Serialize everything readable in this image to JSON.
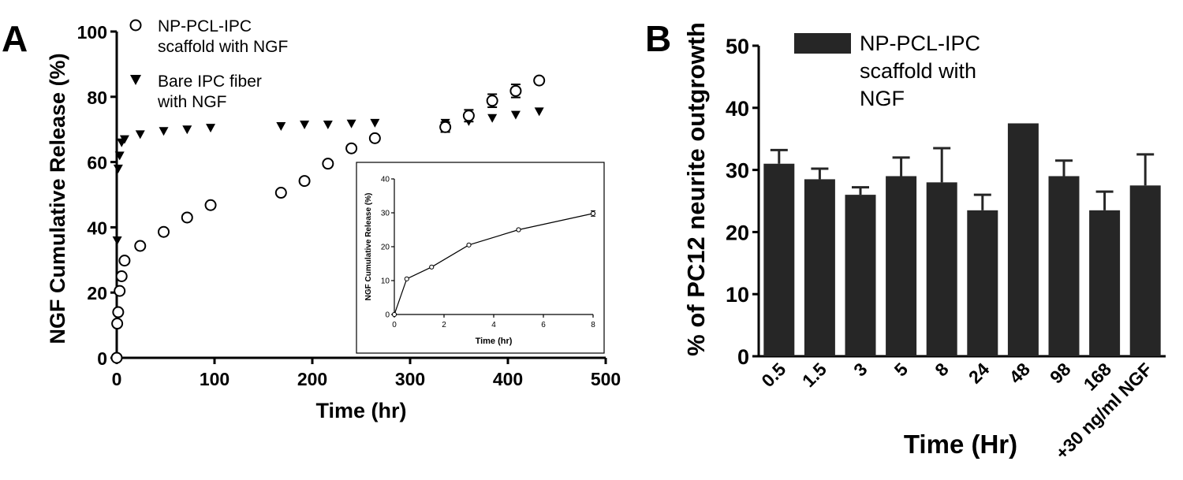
{
  "chart_data": [
    {
      "panel_label": "A",
      "type": "scatter",
      "title": "",
      "xlabel": "Time (hr)",
      "ylabel": "NGF Cumulative Release (%)",
      "xlim": [
        0,
        500
      ],
      "ylim": [
        0,
        100
      ],
      "xticks": [
        0,
        100,
        200,
        300,
        400,
        500
      ],
      "yticks": [
        0,
        20,
        40,
        60,
        80,
        100
      ],
      "grid": false,
      "legend_position": "top-left",
      "series": [
        {
          "name": "NP-PCL-IPC scaffold with NGF",
          "legend_lines": [
            "NP-PCL-IPC",
            "scaffold with NGF"
          ],
          "marker": "open-circle",
          "points": [
            [
              0,
              0
            ],
            [
              0.5,
              10.5
            ],
            [
              1.5,
              14
            ],
            [
              3,
              20.5
            ],
            [
              5,
              25
            ],
            [
              8,
              29.8
            ],
            [
              24,
              34.3
            ],
            [
              48,
              38.6
            ],
            [
              72,
              43
            ],
            [
              96,
              46.8
            ],
            [
              168,
              50.6
            ],
            [
              192,
              54.2
            ],
            [
              216,
              59.5
            ],
            [
              240,
              64.2
            ],
            [
              264,
              67.3
            ],
            [
              336,
              70.7
            ],
            [
              360,
              74.2
            ],
            [
              384,
              78.8
            ],
            [
              408,
              81.8
            ],
            [
              432,
              85
            ]
          ],
          "error": [
            0,
            0,
            0,
            0,
            0,
            0,
            0,
            0,
            0,
            0,
            0,
            0,
            0,
            0,
            0,
            1.5,
            1.8,
            2.0,
            2.0,
            0
          ]
        },
        {
          "name": "Bare IPC fiber with NGF",
          "legend_lines": [
            "Bare IPC fiber",
            "with NGF"
          ],
          "marker": "filled-down-triangle",
          "points": [
            [
              0,
              0
            ],
            [
              0.5,
              36
            ],
            [
              1.5,
              58
            ],
            [
              3,
              62
            ],
            [
              5,
              66
            ],
            [
              8,
              67
            ],
            [
              24,
              68.5
            ],
            [
              48,
              69.5
            ],
            [
              72,
              70
            ],
            [
              96,
              70.5
            ],
            [
              168,
              71
            ],
            [
              192,
              71.5
            ],
            [
              216,
              71.5
            ],
            [
              240,
              71.8
            ],
            [
              264,
              72
            ],
            [
              336,
              72
            ],
            [
              360,
              72.5
            ],
            [
              384,
              73.5
            ],
            [
              408,
              74.5
            ],
            [
              432,
              75.5
            ]
          ]
        }
      ],
      "inset": {
        "type": "line",
        "xlabel": "Time (hr)",
        "ylabel": "NGF Cumulative Release (%)",
        "xlim": [
          0,
          8
        ],
        "ylim": [
          0,
          40
        ],
        "xticks": [
          0,
          2,
          4,
          6,
          8
        ],
        "yticks": [
          0,
          10,
          20,
          30,
          40
        ],
        "marker": "open-circle",
        "x": [
          0,
          0.5,
          1.5,
          3,
          5,
          8
        ],
        "y": [
          0,
          10.5,
          14,
          20.5,
          25,
          29.8
        ],
        "error": [
          0,
          0,
          0,
          0,
          0,
          0.8
        ]
      }
    },
    {
      "panel_label": "B",
      "type": "bar",
      "title": "",
      "xlabel": "Time (Hr)",
      "ylabel": "% of PC12 neurite outgrowth",
      "ylim": [
        0,
        50
      ],
      "yticks": [
        0,
        10,
        20,
        30,
        40,
        50
      ],
      "grid": false,
      "legend_position": "top-left",
      "series": [
        {
          "name": "NP-PCL-IPC scaffold with NGF",
          "legend_lines": [
            "NP-PCL-IPC",
            "scaffold with",
            "NGF"
          ],
          "color": "#262626",
          "categories": [
            "0.5",
            "1.5",
            "3",
            "5",
            "8",
            "24",
            "48",
            "98",
            "168",
            "+30 ng/ml NGF"
          ],
          "values": [
            31,
            28.5,
            26,
            29,
            28,
            23.5,
            37.5,
            29,
            23.5,
            27.5
          ],
          "error": [
            2.2,
            1.7,
            1.2,
            3.0,
            5.5,
            2.5,
            0,
            2.5,
            3.0,
            5.0
          ]
        }
      ]
    }
  ]
}
